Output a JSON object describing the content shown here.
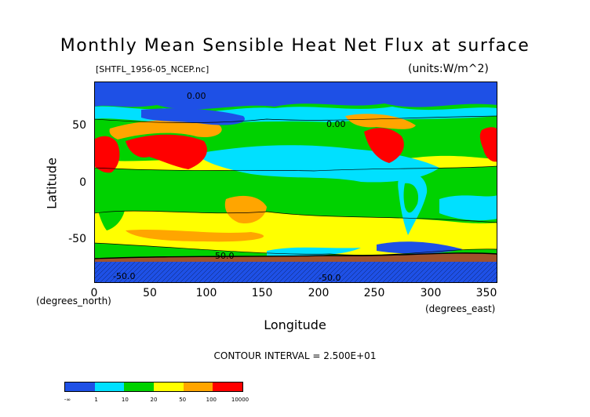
{
  "header": {
    "title": "Monthly Mean Sensible Heat Net Flux at surface",
    "file": "[SHTFL_1956-05_NCEP.nc]",
    "units": "(units:W/m^2)"
  },
  "footer": {
    "contour_interval": "CONTOUR INTERVAL = 2.500E+01"
  },
  "chart_data": {
    "type": "heatmap",
    "title": "Monthly Mean Sensible Heat Net Flux at surface",
    "xlabel": "Longitude",
    "ylabel": "Latitude",
    "x_unit": "(degrees_east)",
    "y_unit": "(degrees_north)",
    "xlim": [
      0,
      360
    ],
    "ylim": [
      -90,
      90
    ],
    "x_ticks": [
      "0",
      "50",
      "100",
      "150",
      "200",
      "250",
      "300",
      "350"
    ],
    "y_ticks": [
      "50",
      "0",
      "-50"
    ],
    "contour_labels": [
      "0.00",
      "0.00",
      "-50.0",
      "-50.0",
      "-50.0"
    ],
    "colorbar": {
      "labels": [
        "-∞",
        "1",
        "10",
        "20",
        "50",
        "100",
        "10000"
      ],
      "colors": [
        "#1e50e6",
        "#00e0ff",
        "#00d200",
        "#ffff00",
        "#ffa500",
        "#ff0000"
      ]
    }
  }
}
